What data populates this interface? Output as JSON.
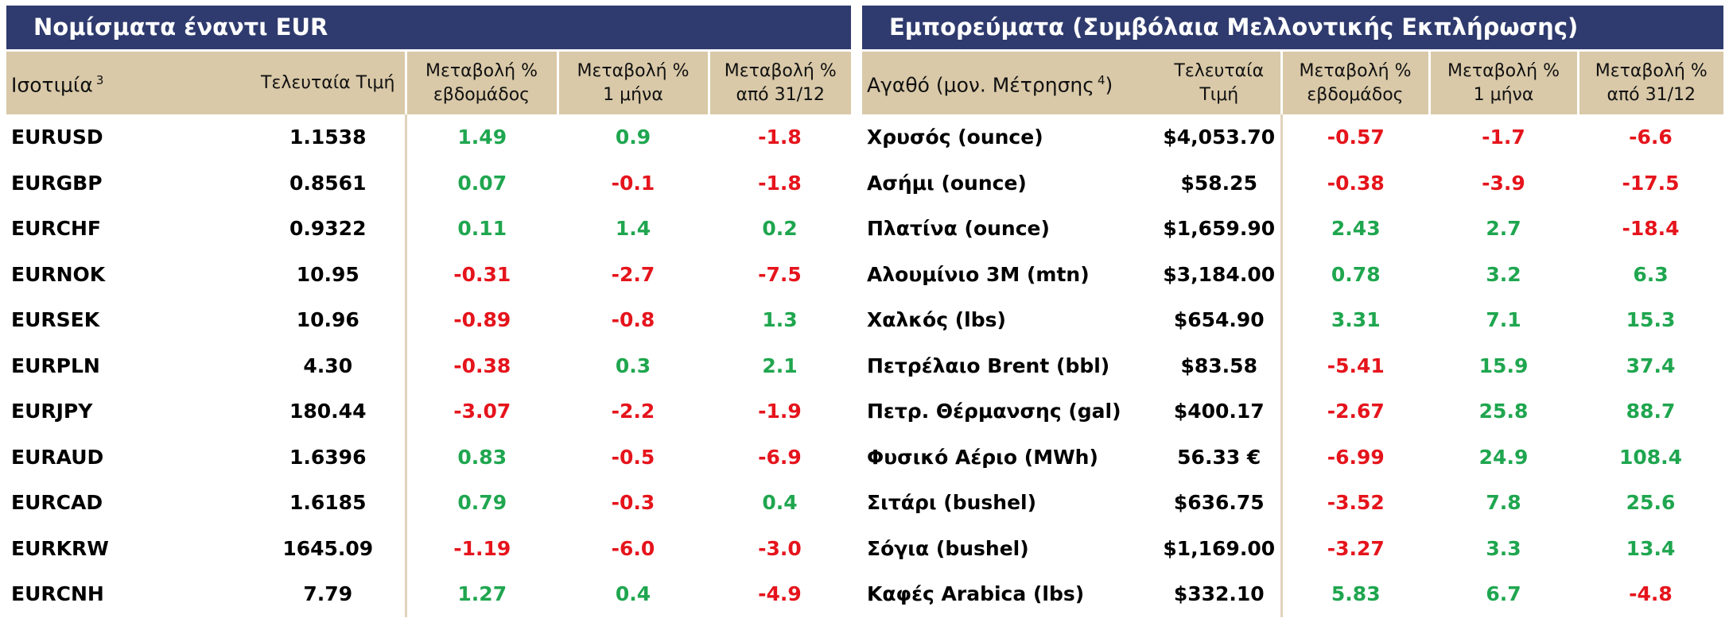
{
  "currencies": {
    "title": "Νομίσματα έναντι EUR",
    "header": {
      "name": {
        "text": "Ισοτιμία",
        "sup": "3",
        "after": ""
      },
      "columns": [
        [
          "Τελευταία Τιμή"
        ],
        [
          "Μεταβολή %",
          "εβδομάδος"
        ],
        [
          "Μεταβολή %",
          "1 μήνα"
        ],
        [
          "Μεταβολή %",
          "από 31/12"
        ]
      ]
    },
    "rows": [
      [
        "EURUSD",
        "1.1538",
        "1.49",
        "0.9",
        "-1.8"
      ],
      [
        "EURGBP",
        "0.8561",
        "0.07",
        "-0.1",
        "-1.8"
      ],
      [
        "EURCHF",
        "0.9322",
        "0.11",
        "1.4",
        "0.2"
      ],
      [
        "EURNOK",
        "10.95",
        "-0.31",
        "-2.7",
        "-7.5"
      ],
      [
        "EURSEK",
        "10.96",
        "-0.89",
        "-0.8",
        "1.3"
      ],
      [
        "EURPLN",
        "4.30",
        "-0.38",
        "0.3",
        "2.1"
      ],
      [
        "EURJPY",
        "180.44",
        "-3.07",
        "-2.2",
        "-1.9"
      ],
      [
        "EURAUD",
        "1.6396",
        "0.83",
        "-0.5",
        "-6.9"
      ],
      [
        "EURCAD",
        "1.6185",
        "0.79",
        "-0.3",
        "0.4"
      ],
      [
        "EURKRW",
        "1645.09",
        "-1.19",
        "-6.0",
        "-3.0"
      ],
      [
        "EURCNH",
        "7.79",
        "1.27",
        "0.4",
        "-4.9"
      ]
    ]
  },
  "commodities": {
    "title": "Εμπορεύματα (Συμβόλαια Μελλοντικής Εκπλήρωσης)",
    "header": {
      "name": {
        "text": "Αγαθό (μον. Μέτρησης",
        "sup": "4",
        "after": ")"
      },
      "columns": [
        [
          "Τελευταία",
          "Τιμή"
        ],
        [
          "Μεταβολή %",
          "εβδομάδος"
        ],
        [
          "Μεταβολή %",
          "1 μήνα"
        ],
        [
          "Μεταβολή %",
          "από 31/12"
        ]
      ]
    },
    "rows": [
      [
        "Χρυσός (ounce)",
        "$4,053.70",
        "-0.57",
        "-1.7",
        "-6.6"
      ],
      [
        "Ασήμι (ounce)",
        "$58.25",
        "-0.38",
        "-3.9",
        "-17.5"
      ],
      [
        "Πλατίνα (ounce)",
        "$1,659.90",
        "2.43",
        "2.7",
        "-18.4"
      ],
      [
        "Αλουμίνιο 3M (mtn)",
        "$3,184.00",
        "0.78",
        "3.2",
        "6.3"
      ],
      [
        "Χαλκός (lbs)",
        "$654.90",
        "3.31",
        "7.1",
        "15.3"
      ],
      [
        "Πετρέλαιο Brent (bbl)",
        "$83.58",
        "-5.41",
        "15.9",
        "37.4"
      ],
      [
        "Πετρ. Θέρμανσης (gal)",
        "$400.17",
        "-2.67",
        "25.8",
        "88.7"
      ],
      [
        "Φυσικό Αέριο (MWh)",
        "56.33 €",
        "-6.99",
        "24.9",
        "108.4"
      ],
      [
        "Σιτάρι (bushel)",
        "$636.75",
        "-3.52",
        "7.8",
        "25.6"
      ],
      [
        "Σόγια (bushel)",
        "$1,169.00",
        "-3.27",
        "3.3",
        "13.4"
      ],
      [
        "Καφές Arabica (lbs)",
        "$332.10",
        "5.83",
        "6.7",
        "-4.8"
      ]
    ]
  }
}
